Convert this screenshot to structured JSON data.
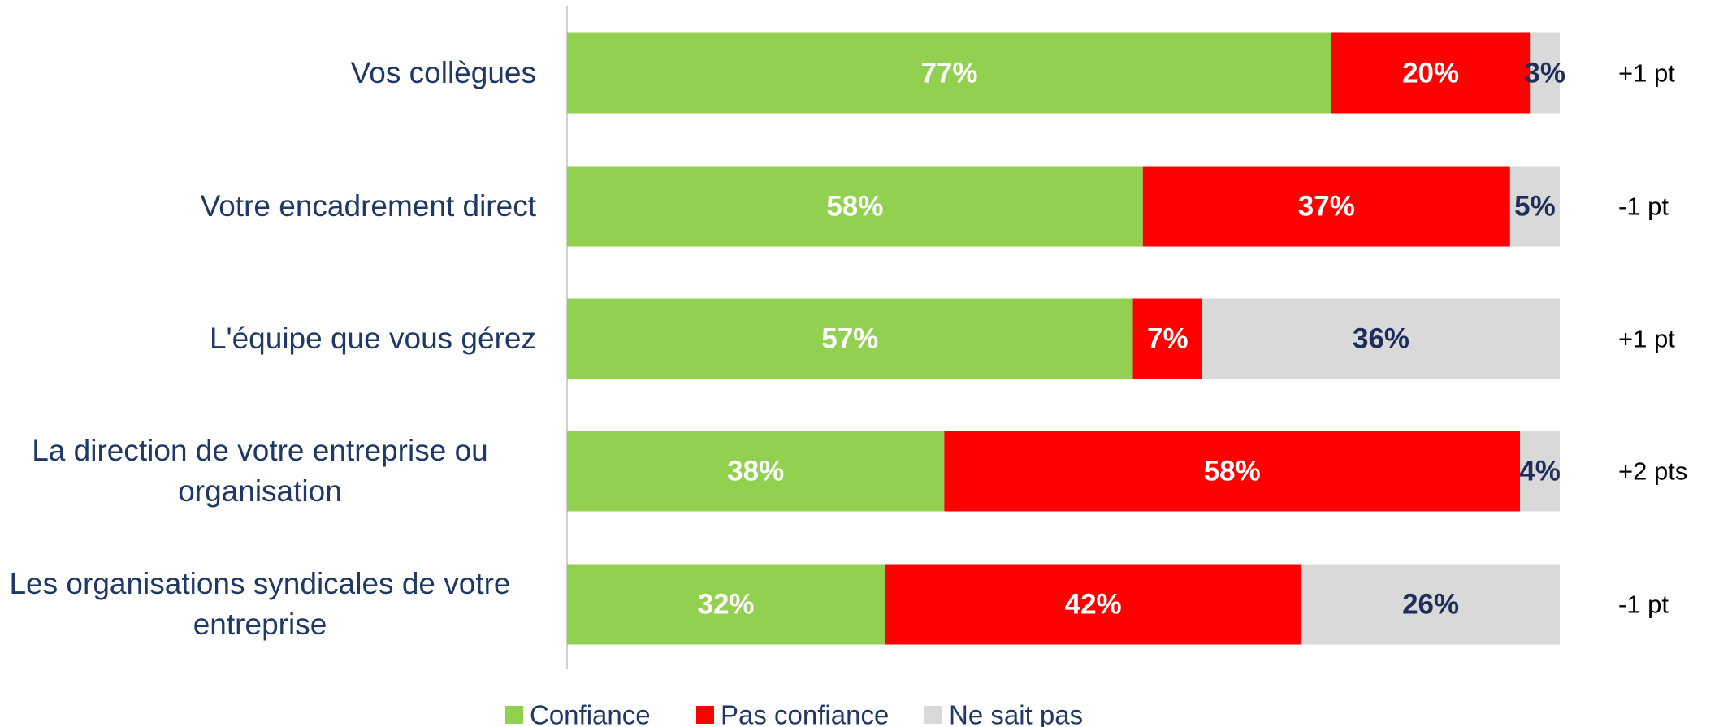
{
  "chart_data": {
    "type": "stacked-bar-horizontal",
    "categories": [
      "Vos collègues",
      "Votre encadrement direct",
      "L'équipe que vous gérez",
      "La direction de votre entreprise ou organisation",
      "Les organisations syndicales de votre entreprise"
    ],
    "series": [
      {
        "name": "Confiance",
        "color": "#92d050",
        "label_color": "#ffffff",
        "values": [
          77,
          58,
          57,
          38,
          32
        ],
        "value_labels": [
          "77%",
          "58%",
          "57%",
          "38%",
          "32%"
        ]
      },
      {
        "name": "Pas confiance",
        "color": "#ff0000",
        "label_color": "#ffffff",
        "values": [
          20,
          37,
          7,
          58,
          42
        ],
        "value_labels": [
          "20%",
          "37%",
          "7%",
          "58%",
          "42%"
        ]
      },
      {
        "name": "Ne sait pas",
        "color": "#d9d9d9",
        "label_color": "#1f2d5c",
        "values": [
          3,
          5,
          36,
          4,
          26
        ],
        "value_labels": [
          "3%",
          "5%",
          "36%",
          "4%",
          "26%"
        ]
      }
    ],
    "annotations": [
      "+1 pt",
      "-1 pt",
      "+1 pt",
      "+2 pts",
      "-1 pt"
    ],
    "xlim": [
      0,
      100
    ]
  }
}
